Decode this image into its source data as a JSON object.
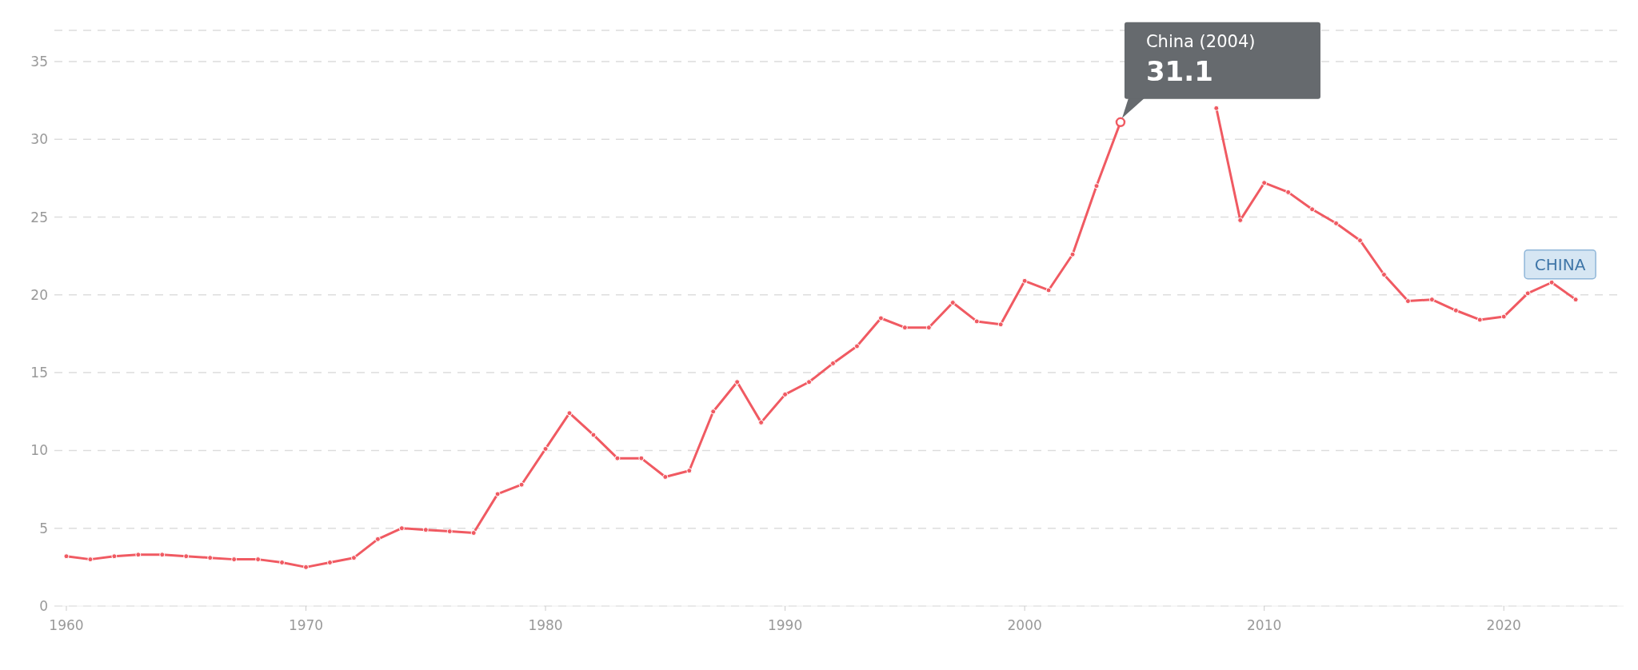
{
  "chart_data": {
    "type": "line",
    "x": [
      1960,
      1961,
      1962,
      1963,
      1964,
      1965,
      1966,
      1967,
      1968,
      1969,
      1970,
      1971,
      1972,
      1973,
      1974,
      1975,
      1976,
      1977,
      1978,
      1979,
      1980,
      1981,
      1982,
      1983,
      1984,
      1985,
      1986,
      1987,
      1988,
      1989,
      1990,
      1991,
      1992,
      1993,
      1994,
      1995,
      1996,
      1997,
      1998,
      1999,
      2000,
      2001,
      2002,
      2003,
      2004,
      2005,
      2006,
      2007,
      2008,
      2009,
      2010,
      2011,
      2012,
      2013,
      2014,
      2015,
      2016,
      2017,
      2018,
      2019,
      2020,
      2021,
      2022,
      2023
    ],
    "series": [
      {
        "name": "CHINA",
        "color": "#f05a62",
        "values": [
          3.2,
          3.0,
          3.2,
          3.3,
          3.3,
          3.2,
          3.1,
          3.0,
          3.0,
          2.8,
          2.5,
          2.8,
          3.1,
          4.3,
          5.0,
          4.9,
          4.8,
          4.7,
          7.2,
          7.8,
          10.1,
          12.4,
          11.0,
          9.5,
          9.5,
          8.3,
          8.7,
          12.5,
          14.4,
          11.8,
          13.6,
          14.4,
          15.6,
          16.7,
          18.5,
          17.9,
          17.9,
          19.5,
          18.3,
          18.1,
          20.9,
          20.3,
          22.6,
          27.0,
          31.1,
          null,
          null,
          null,
          32.0,
          24.8,
          27.2,
          26.6,
          25.5,
          24.6,
          23.5,
          21.3,
          19.6,
          19.7,
          19.0,
          18.4,
          18.6,
          20.1,
          20.8,
          19.7
        ]
      }
    ],
    "xlim": [
      1959.5,
      2025
    ],
    "xticks": [
      1960,
      1970,
      1980,
      1990,
      2000,
      2010,
      2020
    ],
    "ylim": [
      0,
      37
    ],
    "yticks": [
      0,
      5,
      10,
      15,
      20,
      25,
      30,
      35
    ],
    "grid": "y",
    "marker": "circle",
    "line_style": "solid",
    "annotations": [
      "China (2004)",
      {
        "text": "31.1",
        "x": 2004,
        "y": 31.1
      }
    ]
  }
}
